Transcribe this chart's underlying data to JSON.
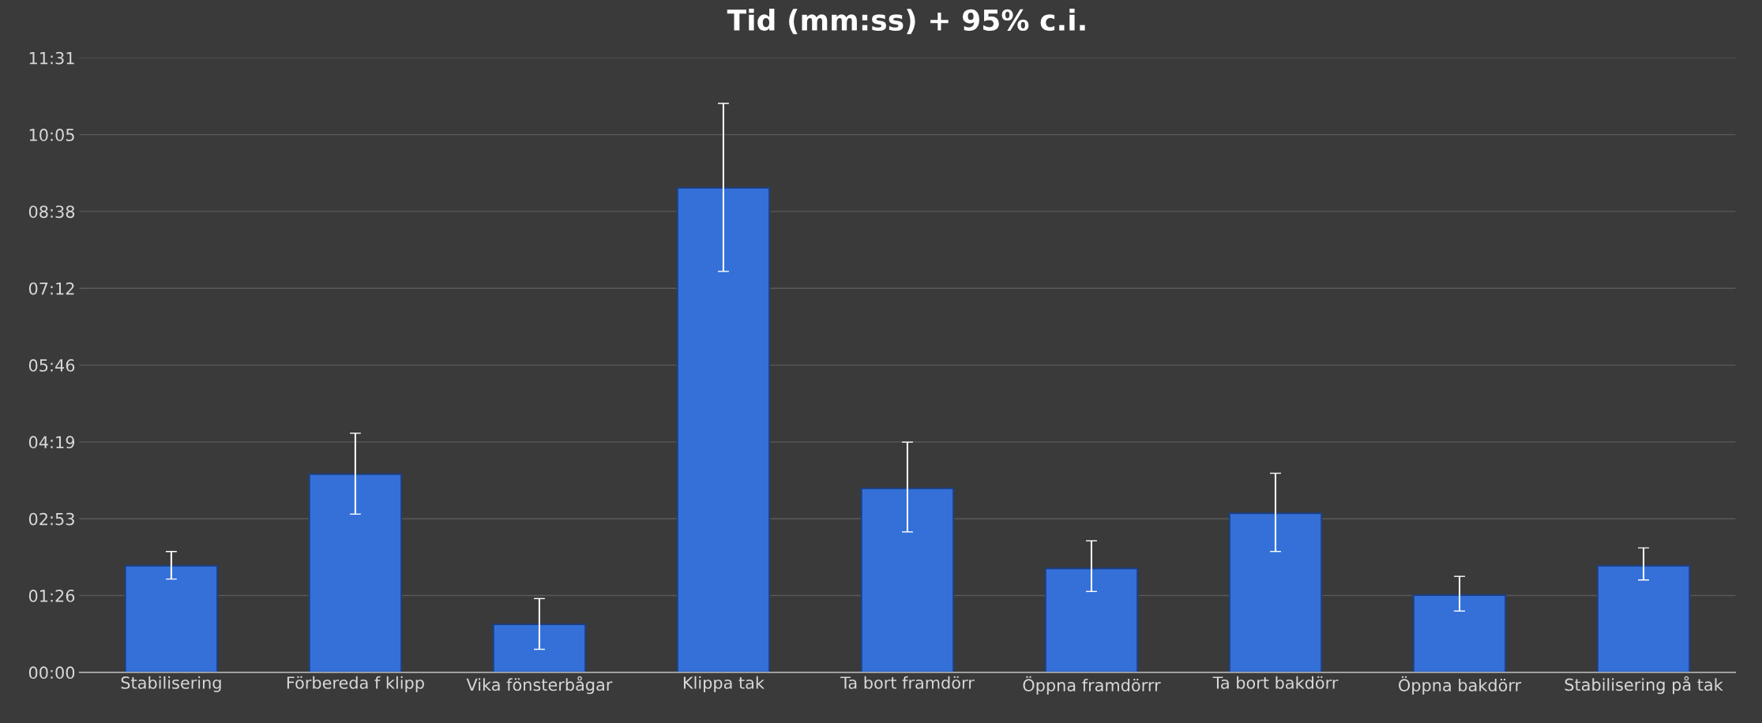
{
  "chart_data": {
    "type": "bar",
    "title": "Tid (mm:ss) + 95% c.i.",
    "categories": [
      "Stabilisering",
      "Förbereda f klipp",
      "Vika fönsterbågar",
      "Klippa tak",
      "Ta bort framdörr",
      "Öppna framdörrr",
      "Ta bort bakdörr",
      "Öppna bakdörr",
      "Stabilisering på tak"
    ],
    "values": [
      120,
      223,
      54,
      545,
      207,
      117,
      179,
      87,
      120
    ],
    "errors": [
      [
        105,
        136
      ],
      [
        178,
        269
      ],
      [
        26,
        83
      ],
      [
        451,
        640
      ],
      [
        158,
        259
      ],
      [
        91,
        148
      ],
      [
        136,
        224
      ],
      [
        69,
        108
      ],
      [
        104,
        140
      ]
    ],
    "color": "#3470d8",
    "ylim": [
      0,
      691.2
    ],
    "yticks": [
      {
        "value": 0,
        "label": "00:00"
      },
      {
        "value": 86.4,
        "label": "01:26"
      },
      {
        "value": 172.8,
        "label": "02:53"
      },
      {
        "value": 259.2,
        "label": "04:19"
      },
      {
        "value": 345.6,
        "label": "05:46"
      },
      {
        "value": 432,
        "label": "07:12"
      },
      {
        "value": 518.4,
        "label": "08:38"
      },
      {
        "value": 604.8,
        "label": "10:05"
      },
      {
        "value": 691.2,
        "label": "11:31"
      }
    ],
    "grid": "y"
  }
}
